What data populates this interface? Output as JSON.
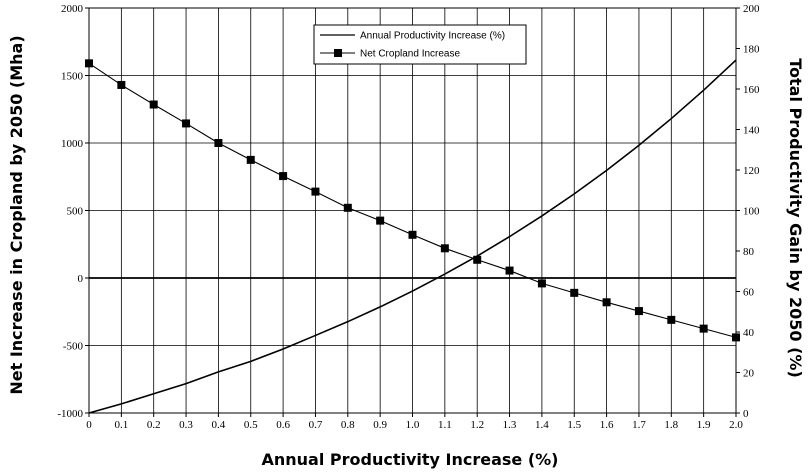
{
  "chart_data": {
    "type": "line",
    "xlabel": "Annual Productivity Increase (%)",
    "ylabel_left": "Net Increase in Cropland by 2050 (Mha)",
    "ylabel_right": "Total Productivity Gain by 2050 (%)",
    "x": [
      0,
      0.1,
      0.2,
      0.3,
      0.4,
      0.5,
      0.6,
      0.7,
      0.8,
      0.9,
      1.0,
      1.1,
      1.2,
      1.3,
      1.4,
      1.5,
      1.6,
      1.7,
      1.8,
      1.9,
      2.0
    ],
    "xlim": [
      0,
      2
    ],
    "ylim_left": [
      -1000,
      2000
    ],
    "ylim_right": [
      0,
      200
    ],
    "x_ticks": [
      "0",
      "0.1",
      "0.2",
      "0.3",
      "0.4",
      "0.5",
      "0.6",
      "0.7",
      "0.8",
      "0.9",
      "1.0",
      "1.1",
      "1.2",
      "1.3",
      "1.4",
      "1.5",
      "1.6",
      "1.7",
      "1.8",
      "1.9",
      "2.0"
    ],
    "y_left_ticks": [
      "-1000",
      "-500",
      "0",
      "500",
      "1000",
      "1500",
      "2000"
    ],
    "y_right_ticks": [
      "0",
      "20",
      "40",
      "60",
      "80",
      "100",
      "120",
      "140",
      "160",
      "180",
      "200"
    ],
    "grid": true,
    "legend": "top-center",
    "series": [
      {
        "name": "Annual Productivity Increase (%)",
        "axis": "right",
        "marker": "none",
        "values": [
          0,
          4.5,
          9.5,
          14.5,
          20.3,
          25.5,
          31.6,
          38.3,
          45.1,
          52.4,
          60.2,
          68.6,
          77.5,
          87.1,
          97.3,
          108.2,
          119.8,
          132.2,
          145.4,
          159.4,
          174.3
        ]
      },
      {
        "name": "Net Cropland Increase",
        "axis": "left",
        "marker": "square",
        "values": [
          1590,
          1430,
          1285,
          1145,
          1000,
          875,
          755,
          640,
          520,
          425,
          320,
          220,
          135,
          55,
          -40,
          -110,
          -180,
          -245,
          -310,
          -375,
          -440
        ]
      }
    ]
  }
}
